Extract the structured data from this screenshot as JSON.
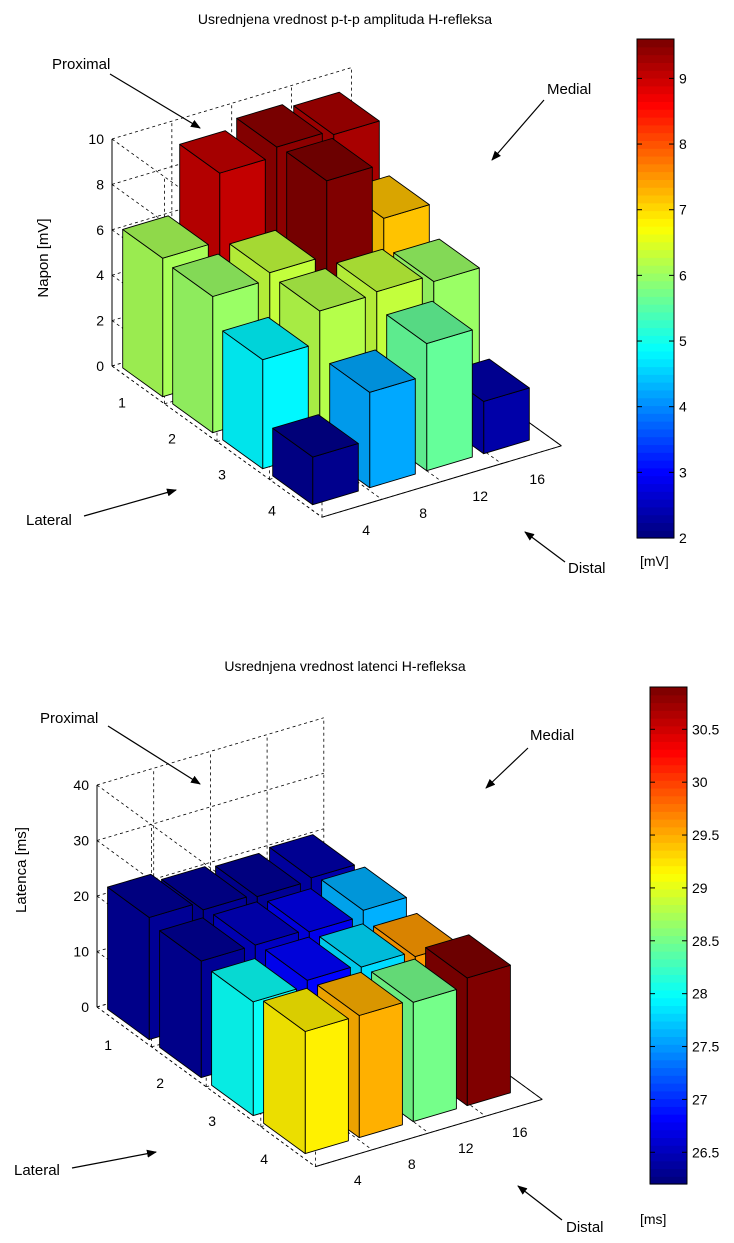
{
  "chart_data": [
    {
      "type": "bar3d",
      "title": "Usrednjena vrednost p-t-p amplituda H-refleksa",
      "zlabel": "Napon [mV]",
      "zlim": [
        0,
        10
      ],
      "z_ticks": [
        0,
        2,
        4,
        6,
        8,
        10
      ],
      "rows": [
        "1",
        "2",
        "3",
        "4"
      ],
      "cols": [
        "4",
        "8",
        "12",
        "16"
      ],
      "values": [
        [
          6.1,
          9.1,
          9.5,
          9.3
        ],
        [
          6.0,
          6.3,
          9.6,
          7.2
        ],
        [
          4.8,
          6.2,
          6.3,
          6.0
        ],
        [
          2.1,
          4.2,
          5.6,
          2.3
        ]
      ],
      "colorbar": {
        "label": "[mV]",
        "range": [
          2,
          9.6
        ],
        "ticks": [
          2,
          3,
          4,
          5,
          6,
          7,
          8,
          9
        ]
      },
      "annotations": [
        "Proximal",
        "Medial",
        "Lateral",
        "Distal"
      ],
      "grid": true
    },
    {
      "type": "bar3d",
      "title": "Usrednjena vrednost latenci H-refleksa",
      "zlabel": "Latenca [ms]",
      "zlim": [
        0,
        40
      ],
      "z_ticks": [
        0,
        10,
        20,
        30,
        40
      ],
      "rows": [
        "1",
        "2",
        "3",
        "4"
      ],
      "cols": [
        "4",
        "8",
        "12",
        "16"
      ],
      "values": [
        [
          22,
          20.5,
          20,
          20.5
        ],
        [
          21,
          21,
          20.5,
          21.5
        ],
        [
          20.5,
          21.5,
          21,
          20
        ],
        [
          22,
          22,
          21.5,
          23
        ]
      ],
      "colors_value": [
        [
          26.3,
          26.3,
          26.3,
          26.4
        ],
        [
          26.3,
          26.5,
          26.7,
          27.6
        ],
        [
          28.0,
          26.8,
          27.8,
          29.6
        ],
        [
          29.2,
          29.5,
          28.5,
          30.9
        ]
      ],
      "colorbar": {
        "label": "[ms]",
        "range": [
          26.2,
          30.9
        ],
        "ticks": [
          26.5,
          27,
          27.5,
          28,
          28.5,
          29,
          29.5,
          30,
          30.5
        ]
      },
      "annotations": [
        "Proximal",
        "Medial",
        "Lateral",
        "Distal"
      ],
      "grid": true
    }
  ]
}
